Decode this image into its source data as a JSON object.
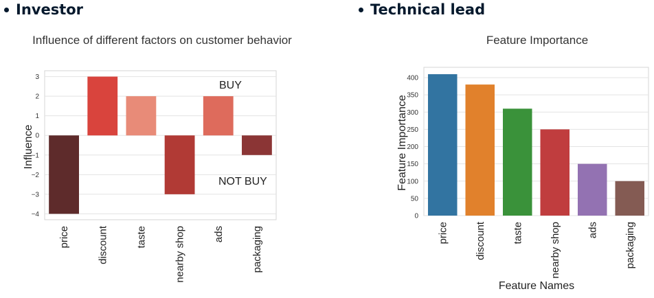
{
  "headings": {
    "left": "Investor",
    "right": "Technical lead"
  },
  "chart_data": [
    {
      "type": "bar",
      "title": "Influence of different factors on customer behavior",
      "xlabel": "",
      "ylabel": "Influence",
      "categories": [
        "price",
        "discount",
        "taste",
        "nearby shop",
        "ads",
        "packaging"
      ],
      "values": [
        -4,
        3,
        2,
        -3,
        2,
        -1
      ],
      "colors": [
        "#5e2b2b",
        "#d9443d",
        "#e88b78",
        "#b13a35",
        "#de6b5c",
        "#8b3535"
      ],
      "ylim": [
        -4.3,
        3.3
      ],
      "yticks": [
        -4,
        -3,
        -2,
        -1,
        0,
        1,
        2,
        3
      ],
      "ytick_labels": [
        "−4",
        "−3",
        "−2",
        "−1",
        "0",
        "1",
        "2",
        "3"
      ],
      "annotations": [
        "BUY",
        "NOT BUY"
      ],
      "grid": true
    },
    {
      "type": "bar",
      "title": "Feature Importance",
      "xlabel": "Feature Names",
      "ylabel": "Feature Importance",
      "categories": [
        "price",
        "discount",
        "taste",
        "nearby shop",
        "ads",
        "packaging"
      ],
      "values": [
        410,
        380,
        310,
        250,
        150,
        100
      ],
      "colors": [
        "#3274a1",
        "#e1812c",
        "#3a923a",
        "#c03d3e",
        "#9372b2",
        "#845b53"
      ],
      "ylim": [
        0,
        430
      ],
      "yticks": [
        0,
        50,
        100,
        150,
        200,
        250,
        300,
        350,
        400
      ],
      "ytick_labels": [
        "0",
        "50",
        "100",
        "150",
        "200",
        "250",
        "300",
        "350",
        "400"
      ],
      "grid": true
    }
  ]
}
